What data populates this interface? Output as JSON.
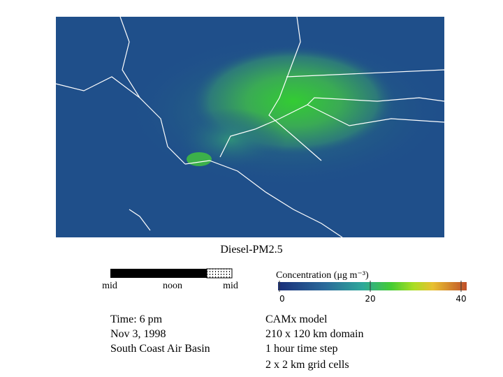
{
  "map": {
    "title": "Diesel-PM2.5"
  },
  "timeline": {
    "labels": [
      "mid",
      "noon",
      "mid"
    ]
  },
  "colorbar": {
    "label": "Concentration (μg m⁻³)",
    "range": [
      0,
      40
    ],
    "ticks": [
      0,
      20,
      40
    ]
  },
  "info": {
    "lines": [
      "Time: 6 pm",
      "Nov 3, 1998",
      "South Coast Air Basin"
    ]
  },
  "model": {
    "lines": [
      "CAMx model",
      "210 x 120 km domain",
      "1 hour time step",
      "2 x 2 km grid cells"
    ]
  }
}
